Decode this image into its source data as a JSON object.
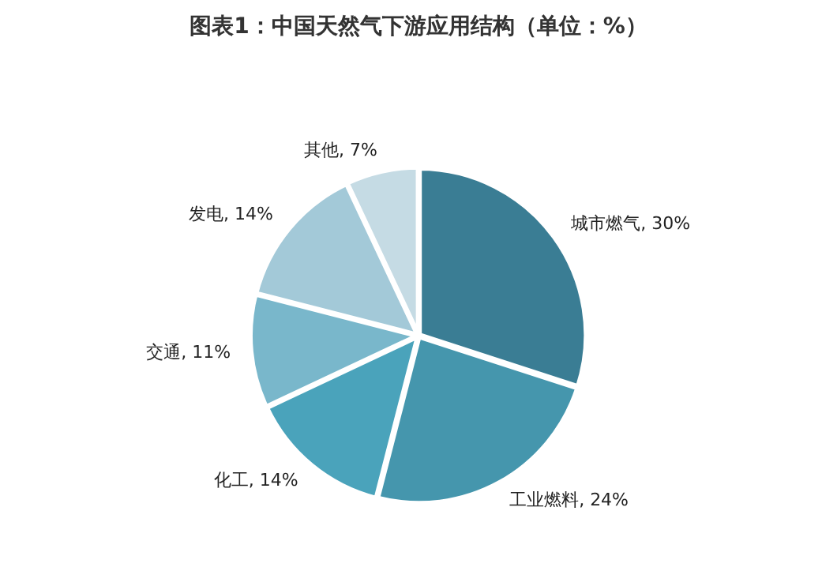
{
  "chart_data": {
    "type": "pie",
    "title": "图表1：中国天然气下游应用结构（单位：%）",
    "categories": [
      "城市燃气",
      "工业燃料",
      "化工",
      "交通",
      "发电",
      "其他"
    ],
    "values": [
      30,
      24,
      14,
      11,
      14,
      7
    ],
    "value_labels": [
      "30%",
      "24%",
      "14%",
      "11%",
      "14%",
      "7%"
    ],
    "colors": [
      "#3a7d94",
      "#4596ad",
      "#4aa3bb",
      "#79b7cb",
      "#a3c9d8",
      "#c5dbe4"
    ],
    "legend": false
  }
}
